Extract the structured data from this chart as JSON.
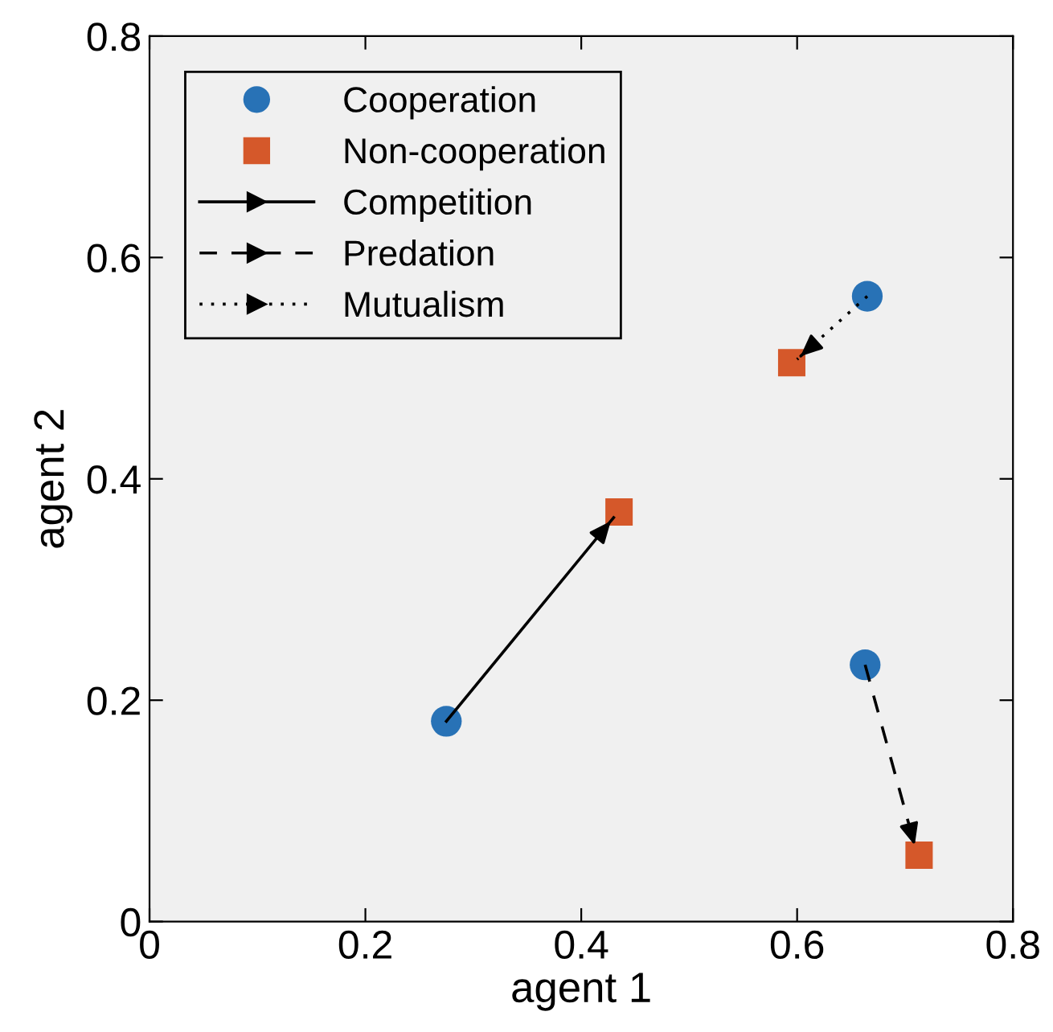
{
  "chart_data": {
    "type": "scatter",
    "xlabel": "agent 1",
    "ylabel": "agent 2",
    "xlim": [
      0,
      0.8
    ],
    "ylim": [
      0,
      0.8
    ],
    "xticks": [
      0,
      0.2,
      0.4,
      0.6,
      0.8
    ],
    "yticks": [
      0,
      0.2,
      0.4,
      0.6,
      0.8
    ],
    "grid": false,
    "legend": "top left",
    "series": [
      {
        "name": "Cooperation",
        "type": "scatter",
        "marker": "circle",
        "color": "#2872b6",
        "x": [
          0.275,
          0.665,
          0.663
        ],
        "values": [
          0.181,
          0.565,
          0.232
        ]
      },
      {
        "name": "Non-cooperation",
        "type": "scatter",
        "marker": "square",
        "color": "#d5582a",
        "x": [
          0.435,
          0.595,
          0.713
        ],
        "values": [
          0.37,
          0.505,
          0.06
        ]
      },
      {
        "name": "Competition",
        "type": "line",
        "line_style": "solid",
        "color": "#000000",
        "x": [
          0.275,
          0.43
        ],
        "values": [
          0.181,
          0.365
        ]
      },
      {
        "name": "Predation",
        "type": "line",
        "line_style": "dashed",
        "color": "#000000",
        "x": [
          0.663,
          0.71
        ],
        "values": [
          0.232,
          0.065
        ]
      },
      {
        "name": "Mutualism",
        "type": "line",
        "line_style": "dotted",
        "color": "#000000",
        "x": [
          0.665,
          0.6
        ],
        "values": [
          0.565,
          0.508
        ]
      }
    ]
  }
}
